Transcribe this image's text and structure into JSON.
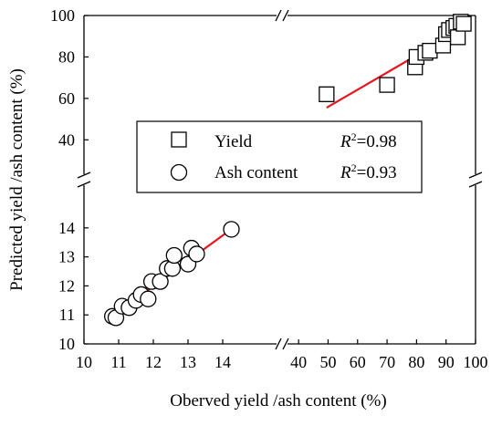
{
  "chart_data": {
    "type": "scatter",
    "title": "",
    "xlabel": "Oberved yield /ash content (%)",
    "ylabel": "Predicted yield /ash content (%)",
    "x_axis_segments": [
      {
        "range": [
          10,
          15
        ],
        "ticks": [
          10,
          11,
          12,
          13,
          14
        ]
      },
      {
        "range": [
          35,
          100
        ],
        "ticks": [
          40,
          50,
          60,
          70,
          80,
          90,
          100
        ]
      }
    ],
    "y_axis_segments": [
      {
        "range": [
          10,
          15
        ],
        "ticks": [
          10,
          11,
          12,
          13,
          14
        ]
      },
      {
        "range": [
          30,
          100
        ],
        "ticks": [
          40,
          60,
          80,
          100
        ]
      }
    ],
    "grid": false,
    "legend_position": "center",
    "series": [
      {
        "name": "Yield",
        "marker": "square",
        "r2_label": "=0.98",
        "x": [
          49.5,
          70.0,
          79.5,
          80.0,
          83.0,
          84.5,
          89.0,
          90.0,
          91.0,
          92.5,
          93.5,
          94.0,
          95.0,
          96.0
        ],
        "y": [
          62.0,
          66.5,
          75.0,
          80.0,
          82.0,
          83.0,
          85.5,
          91.0,
          93.0,
          94.0,
          95.0,
          89.5,
          97.0,
          96.0
        ],
        "fit_line": {
          "x": [
            49.5,
            96.0
          ],
          "y": [
            55.5,
            94.0
          ]
        }
      },
      {
        "name": "Ash content",
        "marker": "circle",
        "r2_label": "=0.93",
        "x": [
          10.82,
          10.92,
          11.1,
          11.3,
          11.5,
          11.65,
          11.85,
          11.95,
          12.2,
          12.4,
          12.55,
          12.6,
          13.0,
          13.1,
          13.25,
          14.25
        ],
        "y": [
          10.95,
          10.9,
          11.3,
          11.25,
          11.5,
          11.7,
          11.55,
          12.15,
          12.15,
          12.6,
          12.6,
          13.05,
          12.75,
          13.3,
          13.1,
          13.95
        ],
        "fit_line": {
          "x": [
            10.75,
            14.3
          ],
          "y": [
            10.9,
            14.0
          ]
        }
      }
    ],
    "fit_line_color": "#e8141c"
  }
}
